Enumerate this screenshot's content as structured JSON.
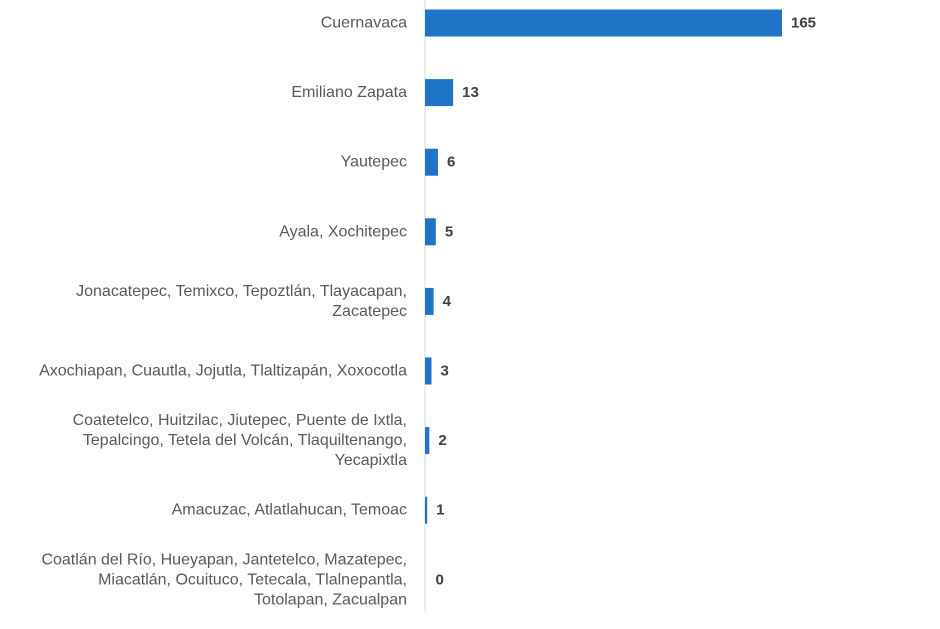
{
  "chart_data": {
    "type": "bar",
    "orientation": "horizontal",
    "categories": [
      [
        "Cuernavaca"
      ],
      [
        "Emiliano Zapata"
      ],
      [
        "Yautepec"
      ],
      [
        "Ayala, Xochitepec"
      ],
      [
        "Jonacatepec, Temixco, Tepoztlán, Tlayacapan,",
        "Zacatepec"
      ],
      [
        "Axochiapan, Cuautla, Jojutla, Tlaltizapán, Xoxocotla"
      ],
      [
        "Coatetelco, Huitzilac, Jiutepec, Puente de Ixtla,",
        "Tepalcingo, Tetela del Volcán, Tlaquiltenango,",
        "Yecapixtla"
      ],
      [
        "Amacuzac, Atlatlahucan, Temoac"
      ],
      [
        "Coatlán del Río, Hueyapan, Jantetelco, Mazatepec,",
        "Miacatlán, Ocuituco, Tetecala, Tlalnepantla,",
        "Totolapan, Zacualpan"
      ]
    ],
    "values": [
      165,
      13,
      6,
      5,
      4,
      3,
      2,
      1,
      0
    ],
    "data_labels": [
      "165",
      "13",
      "6",
      "5",
      "4",
      "3",
      "2",
      "1",
      "0"
    ],
    "title": "",
    "xlabel": "",
    "ylabel": "",
    "xlim": [
      0,
      165
    ],
    "grid": false,
    "legend": "none",
    "bar_color": "#1F74C8",
    "axis_color": "#D9D9D9",
    "label_color": "#595959",
    "value_color": "#404040"
  }
}
